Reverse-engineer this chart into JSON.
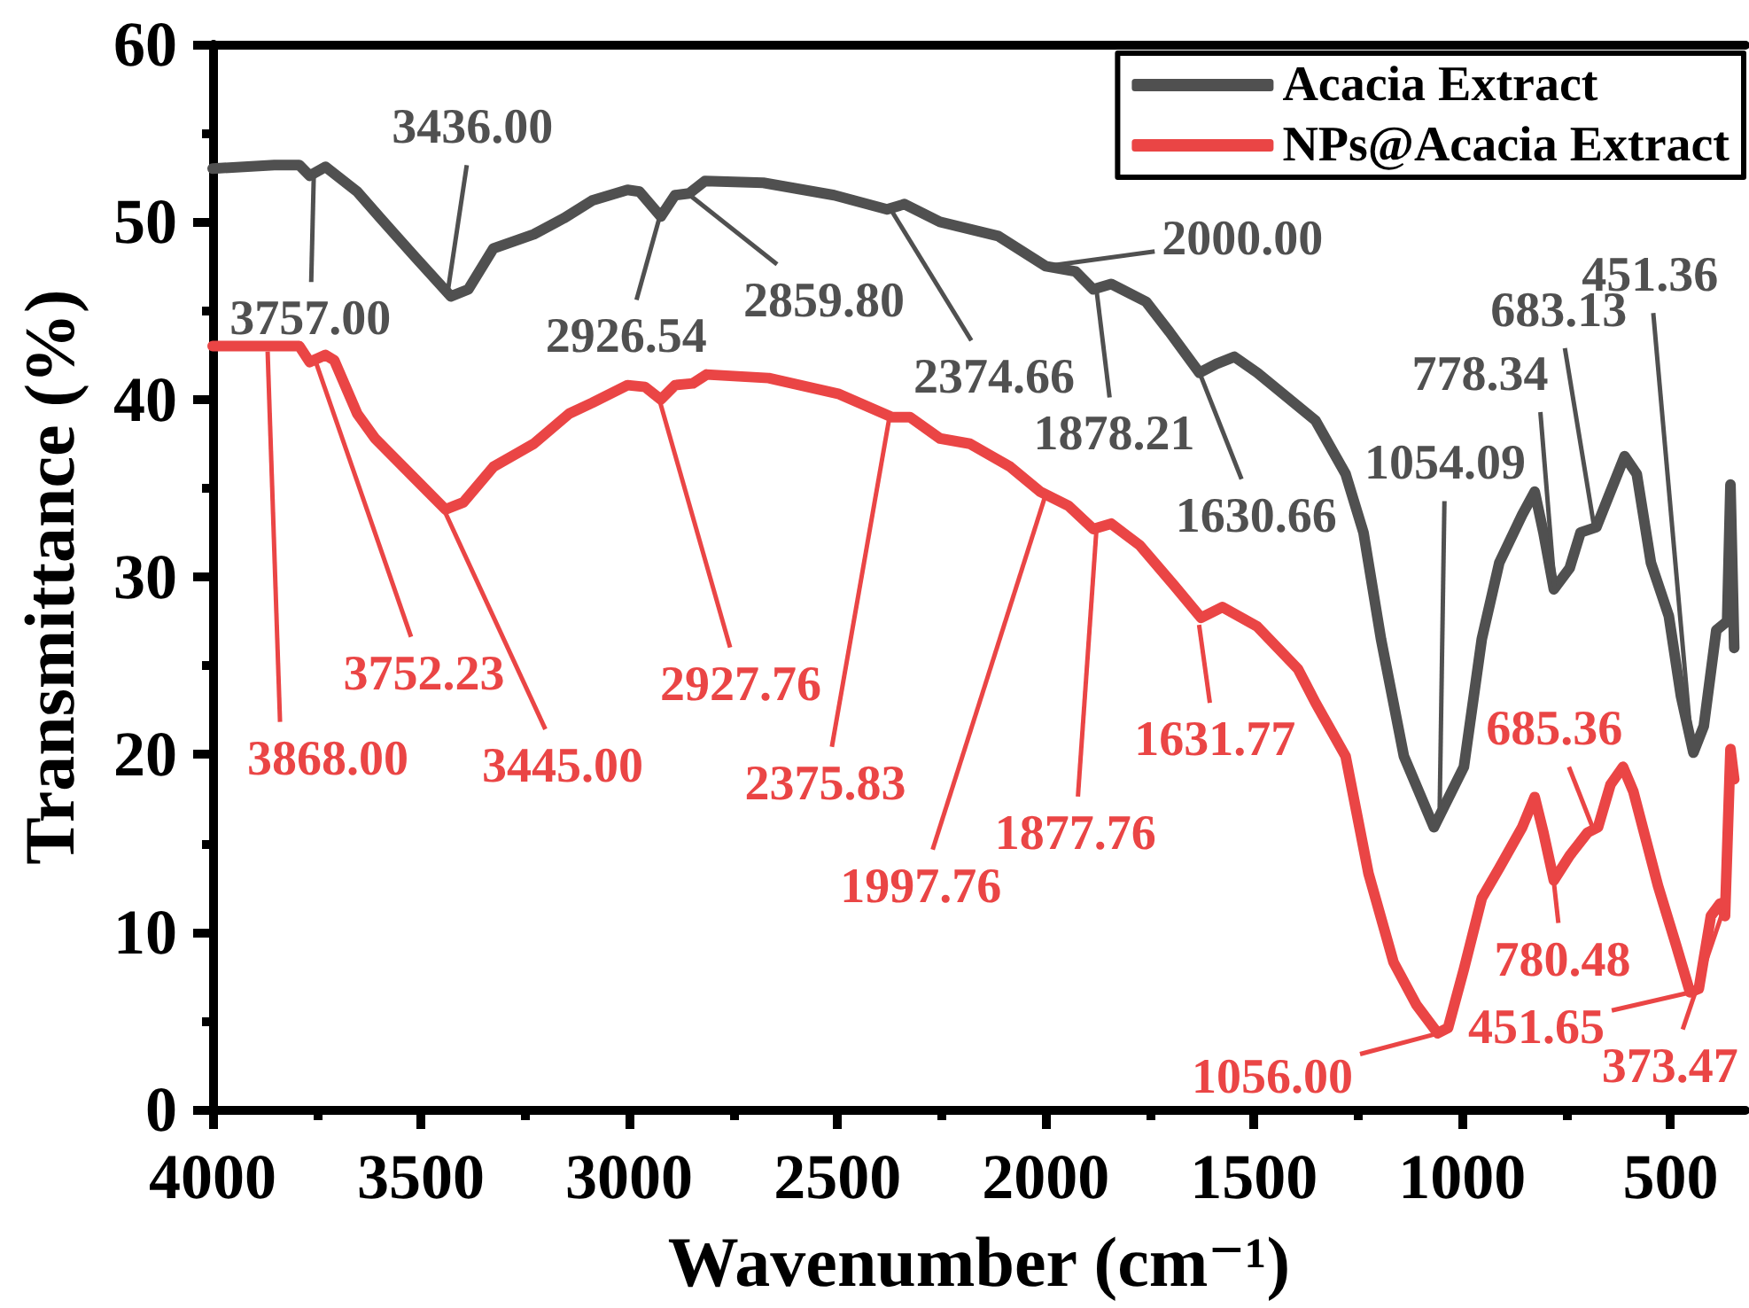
{
  "chart_data": {
    "type": "line",
    "xlabel": "Wavenumber (cm⁻¹)",
    "ylabel": "Transmittance (%)",
    "xlim": [
      4000,
      320
    ],
    "ylim": [
      0,
      60
    ],
    "xticks": [
      4000,
      {
        "value": 3750,
        "label": null
      },
      3500,
      {
        "value": 3250,
        "label": null
      },
      3000,
      {
        "value": 2750,
        "label": null
      },
      2500,
      {
        "value": 2250,
        "label": null
      },
      2000,
      {
        "value": 1750,
        "label": null
      },
      1500,
      {
        "value": 1250,
        "label": null
      },
      1000,
      {
        "value": 750,
        "label": null
      },
      500
    ],
    "yticks": [
      0,
      {
        "value": 5,
        "label": null
      },
      10,
      {
        "value": 15,
        "label": null
      },
      20,
      {
        "value": 25,
        "label": null
      },
      30,
      {
        "value": 35,
        "label": null
      },
      40,
      {
        "value": 45,
        "label": null
      },
      50,
      {
        "value": 55,
        "label": null
      },
      60
    ],
    "legend": "top right",
    "series": [
      {
        "name": "Acacia Extract",
        "color": "#505050",
        "x": [
          4000,
          3852,
          3792,
          3767,
          3729,
          3653,
          3597,
          3513,
          3428,
          3386,
          3326,
          3229,
          3157,
          3089,
          3004,
          2975,
          2924,
          2890,
          2856,
          2818,
          2678,
          2508,
          2381,
          2339,
          2254,
          2114,
          2000,
          1928,
          1886,
          1843,
          1759,
          1703,
          1631,
          1590,
          1547,
          1492,
          1352,
          1280,
          1237,
          1195,
          1140,
          1068,
          996,
          953,
          911,
          856,
          826,
          805,
          780,
          742,
          716,
          678,
          644,
          610,
          581,
          547,
          504,
          475,
          445,
          420,
          390,
          364,
          356,
          347
        ],
        "values": [
          53.0,
          53.2,
          53.2,
          52.6,
          53.1,
          51.7,
          50.2,
          48.0,
          45.8,
          46.2,
          48.5,
          49.3,
          50.2,
          51.2,
          51.8,
          51.7,
          50.3,
          51.5,
          51.6,
          52.3,
          52.2,
          51.5,
          50.7,
          51.0,
          50.0,
          49.2,
          47.5,
          47.2,
          46.2,
          46.5,
          45.5,
          43.8,
          41.5,
          42.0,
          42.4,
          41.5,
          38.8,
          35.8,
          32.5,
          26.5,
          19.9,
          15.9,
          19.3,
          26.5,
          30.8,
          33.5,
          34.8,
          32.5,
          29.3,
          30.5,
          32.5,
          32.8,
          34.8,
          36.8,
          35.8,
          30.8,
          27.8,
          23.3,
          20.1,
          21.6,
          27.0,
          27.5,
          35.2,
          26.0
        ]
      },
      {
        "name": "NPs@Acacia Extract",
        "color": "#ea4545",
        "x": [
          4000,
          3792,
          3767,
          3729,
          3708,
          3653,
          3610,
          3513,
          3441,
          3398,
          3326,
          3229,
          3144,
          3089,
          3004,
          2962,
          2924,
          2890,
          2847,
          2814,
          2665,
          2496,
          2369,
          2326,
          2254,
          2182,
          2085,
          2013,
          1945,
          1886,
          1843,
          1775,
          1691,
          1627,
          1576,
          1492,
          1394,
          1352,
          1280,
          1225,
          1165,
          1110,
          1059,
          1034,
          996,
          953,
          911,
          856,
          826,
          805,
          780,
          742,
          699,
          674,
          644,
          614,
          589,
          530,
          487,
          453,
          432,
          403,
          381,
          369,
          356,
          347
        ],
        "values": [
          43.0,
          43.0,
          42.1,
          42.5,
          42.2,
          39.2,
          37.8,
          35.5,
          33.8,
          34.2,
          36.2,
          37.5,
          39.2,
          39.8,
          40.8,
          40.7,
          40.0,
          40.8,
          40.9,
          41.4,
          41.2,
          40.3,
          39.0,
          39.0,
          37.8,
          37.5,
          36.2,
          34.8,
          34.0,
          32.7,
          33.0,
          31.8,
          29.5,
          27.7,
          28.3,
          27.2,
          24.8,
          22.9,
          19.9,
          13.3,
          8.3,
          5.9,
          4.3,
          4.6,
          7.9,
          11.9,
          13.6,
          15.9,
          17.6,
          15.6,
          12.9,
          14.3,
          15.6,
          15.9,
          18.3,
          19.3,
          17.9,
          12.6,
          9.3,
          6.6,
          6.8,
          10.9,
          11.6,
          10.9,
          20.3,
          18.6
        ]
      }
    ],
    "annotations": [
      {
        "text": "3757.00",
        "x": 3757,
        "y": 52.8
      },
      {
        "text": "3436.00",
        "x": 3436,
        "y": 46.0
      },
      {
        "text": "2926.54",
        "x": 2926.54,
        "y": 50.3
      },
      {
        "text": "2859.80",
        "x": 2859.8,
        "y": 51.6
      },
      {
        "text": "2374.66",
        "x": 2374.66,
        "y": 50.8
      },
      {
        "text": "2000.00",
        "x": 2000,
        "y": 47.5
      },
      {
        "text": "1878.21",
        "x": 1878.21,
        "y": 46.2
      },
      {
        "text": "1630.66",
        "x": 1630.66,
        "y": 41.5
      },
      {
        "text": "1054.09",
        "x": 1054.09,
        "y": 17.0
      },
      {
        "text": "778.34",
        "x": 778.34,
        "y": 29.5
      },
      {
        "text": "683.13",
        "x": 683.13,
        "y": 32.8
      },
      {
        "text": "451.36",
        "x": 451.36,
        "y": 21.0
      },
      {
        "text": "3868.00",
        "x": 3868,
        "y": 42.7
      },
      {
        "text": "3752.23",
        "x": 3752.23,
        "y": 42.1
      },
      {
        "text": "3445.00",
        "x": 3445,
        "y": 33.8
      },
      {
        "text": "2927.76",
        "x": 2927.76,
        "y": 40.0
      },
      {
        "text": "2375.83",
        "x": 2375.83,
        "y": 38.9
      },
      {
        "text": "1997.76",
        "x": 1997.76,
        "y": 34.8
      },
      {
        "text": "1877.76",
        "x": 1877.76,
        "y": 32.8
      },
      {
        "text": "1631.77",
        "x": 1631.77,
        "y": 27.3
      },
      {
        "text": "1056.00",
        "x": 1056,
        "y": 4.3
      },
      {
        "text": "780.48",
        "x": 780.48,
        "y": 12.9
      },
      {
        "text": "685.36",
        "x": 685.36,
        "y": 15.8
      },
      {
        "text": "451.65",
        "x": 451.65,
        "y": 6.6
      },
      {
        "text": "373.47",
        "x": 373.47,
        "y": 11.2
      }
    ]
  }
}
